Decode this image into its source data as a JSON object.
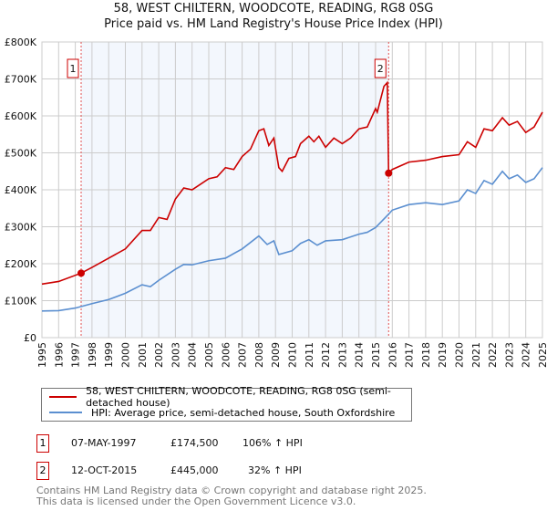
{
  "chart_data": {
    "type": "line",
    "title": "58, WEST CHILTERN, WOODCOTE, READING, RG8 0SG",
    "subtitle": "Price paid vs. HM Land Registry's House Price Index (HPI)",
    "xlim": [
      1995,
      2025
    ],
    "ylim": [
      0,
      800000
    ],
    "x_ticks": [
      "1995",
      "1996",
      "1997",
      "1998",
      "1999",
      "2000",
      "2001",
      "2002",
      "2003",
      "2004",
      "2005",
      "2006",
      "2007",
      "2008",
      "2009",
      "2010",
      "2011",
      "2012",
      "2013",
      "2014",
      "2015",
      "2016",
      "2017",
      "2018",
      "2019",
      "2020",
      "2021",
      "2022",
      "2023",
      "2024",
      "2025"
    ],
    "y_ticks": [
      {
        "v": 0,
        "label": "£0"
      },
      {
        "v": 100000,
        "label": "£100K"
      },
      {
        "v": 200000,
        "label": "£200K"
      },
      {
        "v": 300000,
        "label": "£300K"
      },
      {
        "v": 400000,
        "label": "£400K"
      },
      {
        "v": 500000,
        "label": "£500K"
      },
      {
        "v": 600000,
        "label": "£600K"
      },
      {
        "v": 700000,
        "label": "£700K"
      },
      {
        "v": 800000,
        "label": "£800K"
      }
    ],
    "grid": true,
    "shaded_range": [
      1997.35,
      2015.78
    ],
    "series": [
      {
        "name": "58, WEST CHILTERN, WOODCOTE, READING, RG8 0SG (semi-detached house)",
        "color": "#cc0000",
        "x": [
          1995,
          1996,
          1997.35,
          1998,
          1999,
          2000,
          2001,
          2001.5,
          2002,
          2002.5,
          2003,
          2003.5,
          2004,
          2004.5,
          2005,
          2005.5,
          2006,
          2006.5,
          2007,
          2007.5,
          2008,
          2008.3,
          2008.6,
          2008.9,
          2009.2,
          2009.4,
          2009.8,
          2010.2,
          2010.5,
          2011,
          2011.3,
          2011.6,
          2012,
          2012.5,
          2013,
          2013.5,
          2014,
          2014.5,
          2015,
          2015.1,
          2015.5,
          2015.7,
          2015.78,
          2016,
          2017,
          2018,
          2019,
          2020,
          2020.5,
          2021,
          2021.5,
          2022,
          2022.6,
          2023,
          2023.5,
          2024,
          2024.5,
          2025
        ],
        "y": [
          145000,
          152000,
          174500,
          190000,
          215000,
          240000,
          290000,
          290000,
          325000,
          320000,
          375000,
          405000,
          400000,
          415000,
          430000,
          435000,
          460000,
          455000,
          490000,
          510000,
          560000,
          565000,
          520000,
          540000,
          460000,
          450000,
          485000,
          490000,
          525000,
          545000,
          530000,
          545000,
          515000,
          540000,
          525000,
          540000,
          565000,
          570000,
          620000,
          610000,
          680000,
          690000,
          445000,
          455000,
          475000,
          480000,
          490000,
          495000,
          530000,
          515000,
          565000,
          560000,
          595000,
          575000,
          585000,
          555000,
          570000,
          610000
        ]
      },
      {
        "name": "HPI: Average price, semi-detached house, South Oxfordshire",
        "color": "#5b8fd0",
        "x": [
          1995,
          1996,
          1997,
          1998,
          1999,
          2000,
          2001,
          2001.5,
          2002,
          2003,
          2003.5,
          2004,
          2005,
          2006,
          2007,
          2008,
          2008.5,
          2008.9,
          2009.2,
          2010,
          2010.5,
          2011,
          2011.5,
          2012,
          2013,
          2014,
          2014.5,
          2015,
          2015.8,
          2016,
          2017,
          2018,
          2019,
          2020,
          2020.5,
          2021,
          2021.5,
          2022,
          2022.6,
          2023,
          2023.5,
          2024,
          2024.5,
          2025
        ],
        "y": [
          72000,
          73000,
          80000,
          92000,
          103000,
          120000,
          143000,
          138000,
          155000,
          185000,
          198000,
          197000,
          208000,
          215000,
          240000,
          275000,
          252000,
          262000,
          225000,
          235000,
          255000,
          265000,
          250000,
          262000,
          265000,
          280000,
          285000,
          298000,
          335000,
          345000,
          360000,
          365000,
          360000,
          370000,
          400000,
          390000,
          425000,
          415000,
          450000,
          430000,
          440000,
          420000,
          430000,
          460000
        ]
      }
    ],
    "sales": [
      {
        "n": "1",
        "x": 1997.35,
        "y": 174500,
        "date": "07-MAY-1997",
        "price": "£174,500",
        "hpi": "106% ↑ HPI"
      },
      {
        "n": "2",
        "x": 2015.78,
        "y": 445000,
        "date": "12-OCT-2015",
        "price": "£445,000",
        "hpi": "32% ↑ HPI"
      }
    ],
    "legend_placement": "bottom"
  },
  "footer": [
    "Contains HM Land Registry data © Crown copyright and database right 2025.",
    "This data is licensed under the Open Government Licence v3.0."
  ]
}
